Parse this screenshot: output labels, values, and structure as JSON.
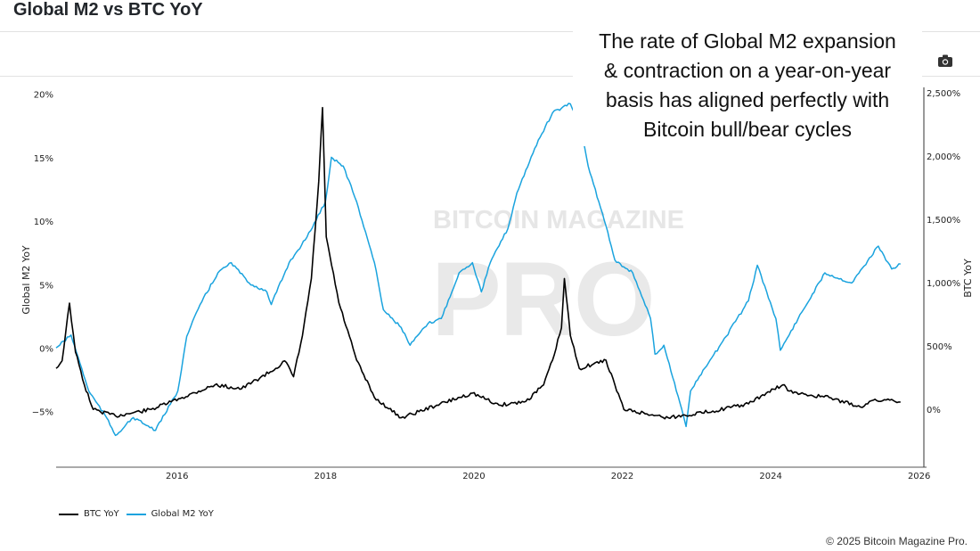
{
  "header": {
    "title": "Global M2 vs BTC YoY",
    "camera_icon": "camera-icon"
  },
  "annotation": "The rate of Global M2 expansion\n& contraction on a year-on-year\nbasis has aligned perfectly with\nBitcoin bull/bear cycles",
  "watermark": {
    "line1": "BITCOIN MAGAZINE",
    "line2": "PRO"
  },
  "footer": {
    "copyright": "© 2025 Bitcoin Magazine Pro."
  },
  "colors": {
    "btc": "#000000",
    "m2": "#1aa3de"
  },
  "chart_data": {
    "type": "line",
    "title": "Global M2 vs BTC YoY",
    "xlabel": "",
    "ylabel_left": "Global M2 YoY",
    "ylabel_right": "BTC YoY",
    "xlim": [
      2014.37,
      2026.1
    ],
    "ylim_left": [
      -9.3,
      20.6
    ],
    "ylim_right": [
      -450,
      2550
    ],
    "x_ticks": [
      "2016",
      "2018",
      "2020",
      "2022",
      "2024",
      "2026"
    ],
    "x_tick_values": [
      2016,
      2018,
      2020,
      2022,
      2024,
      2026
    ],
    "y_left_ticks": [
      "20%",
      "15%",
      "10%",
      "5%",
      "0%",
      "−5%"
    ],
    "y_left_tick_values": [
      20,
      15,
      10,
      5,
      0,
      -5
    ],
    "y_right_ticks": [
      "2,500%",
      "2,000%",
      "1,500%",
      "1,000%",
      "500%",
      "0%"
    ],
    "y_right_tick_values": [
      2500,
      2000,
      1500,
      1000,
      500,
      0
    ],
    "legend_position": "bottom-left",
    "grid": false,
    "series": [
      {
        "name": "BTC YoY",
        "axis": "right",
        "x": [
          2014.37,
          2014.45,
          2014.55,
          2014.63,
          2014.75,
          2014.87,
          2015.17,
          2015.65,
          2016.07,
          2016.51,
          2016.87,
          2017.33,
          2017.45,
          2017.57,
          2017.69,
          2017.81,
          2017.91,
          2017.96,
          2018.01,
          2018.18,
          2018.42,
          2018.66,
          2019.02,
          2019.5,
          2019.98,
          2020.34,
          2020.7,
          2020.94,
          2021.06,
          2021.18,
          2021.22,
          2021.3,
          2021.42,
          2021.78,
          2021.9,
          2022.02,
          2022.62,
          2023.22,
          2023.7,
          2023.94,
          2024.16,
          2024.3,
          2024.79,
          2025.21,
          2025.33,
          2025.63,
          2025.75
        ],
        "values": [
          330,
          390,
          846,
          460,
          200,
          6,
          -45,
          6,
          100,
          200,
          170,
          330,
          390,
          265,
          590,
          1040,
          1810,
          2390,
          1370,
          850,
          395,
          100,
          -60,
          40,
          135,
          40,
          70,
          200,
          395,
          650,
          1040,
          590,
          330,
          395,
          200,
          6,
          -60,
          -6,
          50,
          135,
          200,
          135,
          100,
          25,
          70,
          85,
          65
        ]
      },
      {
        "name": "Global M2 YoY",
        "axis": "left",
        "x": [
          2014.37,
          2014.57,
          2014.69,
          2014.81,
          2015.05,
          2015.17,
          2015.41,
          2015.71,
          2016.01,
          2016.13,
          2016.31,
          2016.55,
          2016.73,
          2016.97,
          2017.21,
          2017.27,
          2017.51,
          2017.75,
          2018.0,
          2018.08,
          2018.24,
          2018.42,
          2018.66,
          2018.78,
          2019.02,
          2019.14,
          2019.38,
          2019.56,
          2019.8,
          2019.98,
          2020.1,
          2020.22,
          2020.46,
          2020.58,
          2020.82,
          2021.06,
          2021.3,
          2021.42,
          2021.54,
          2021.78,
          2021.9,
          2022.14,
          2022.38,
          2022.44,
          2022.56,
          2022.8,
          2022.86,
          2022.92,
          2023.16,
          2023.4,
          2023.7,
          2023.82,
          2024.07,
          2024.13,
          2024.37,
          2024.73,
          2025.09,
          2025.45,
          2025.63,
          2025.75
        ],
        "values": [
          0.1,
          1.1,
          -1.1,
          -3.3,
          -5.4,
          -6.8,
          -5.4,
          -6.4,
          -3.3,
          1.0,
          3.5,
          6.0,
          6.8,
          5.2,
          4.5,
          3.5,
          6.8,
          8.8,
          11.6,
          15.1,
          14.4,
          11.6,
          6.8,
          3.1,
          1.7,
          0.3,
          2.0,
          2.4,
          6.0,
          6.8,
          4.5,
          6.8,
          9.5,
          12.3,
          15.8,
          18.6,
          19.3,
          17.9,
          14.4,
          9.7,
          7.0,
          6.0,
          2.4,
          -0.4,
          0.3,
          -4.7,
          -6.1,
          -3.3,
          -1.1,
          1.0,
          3.8,
          6.6,
          2.4,
          -0.1,
          2.4,
          6.0,
          5.2,
          8.1,
          6.3,
          6.7
        ]
      }
    ]
  }
}
